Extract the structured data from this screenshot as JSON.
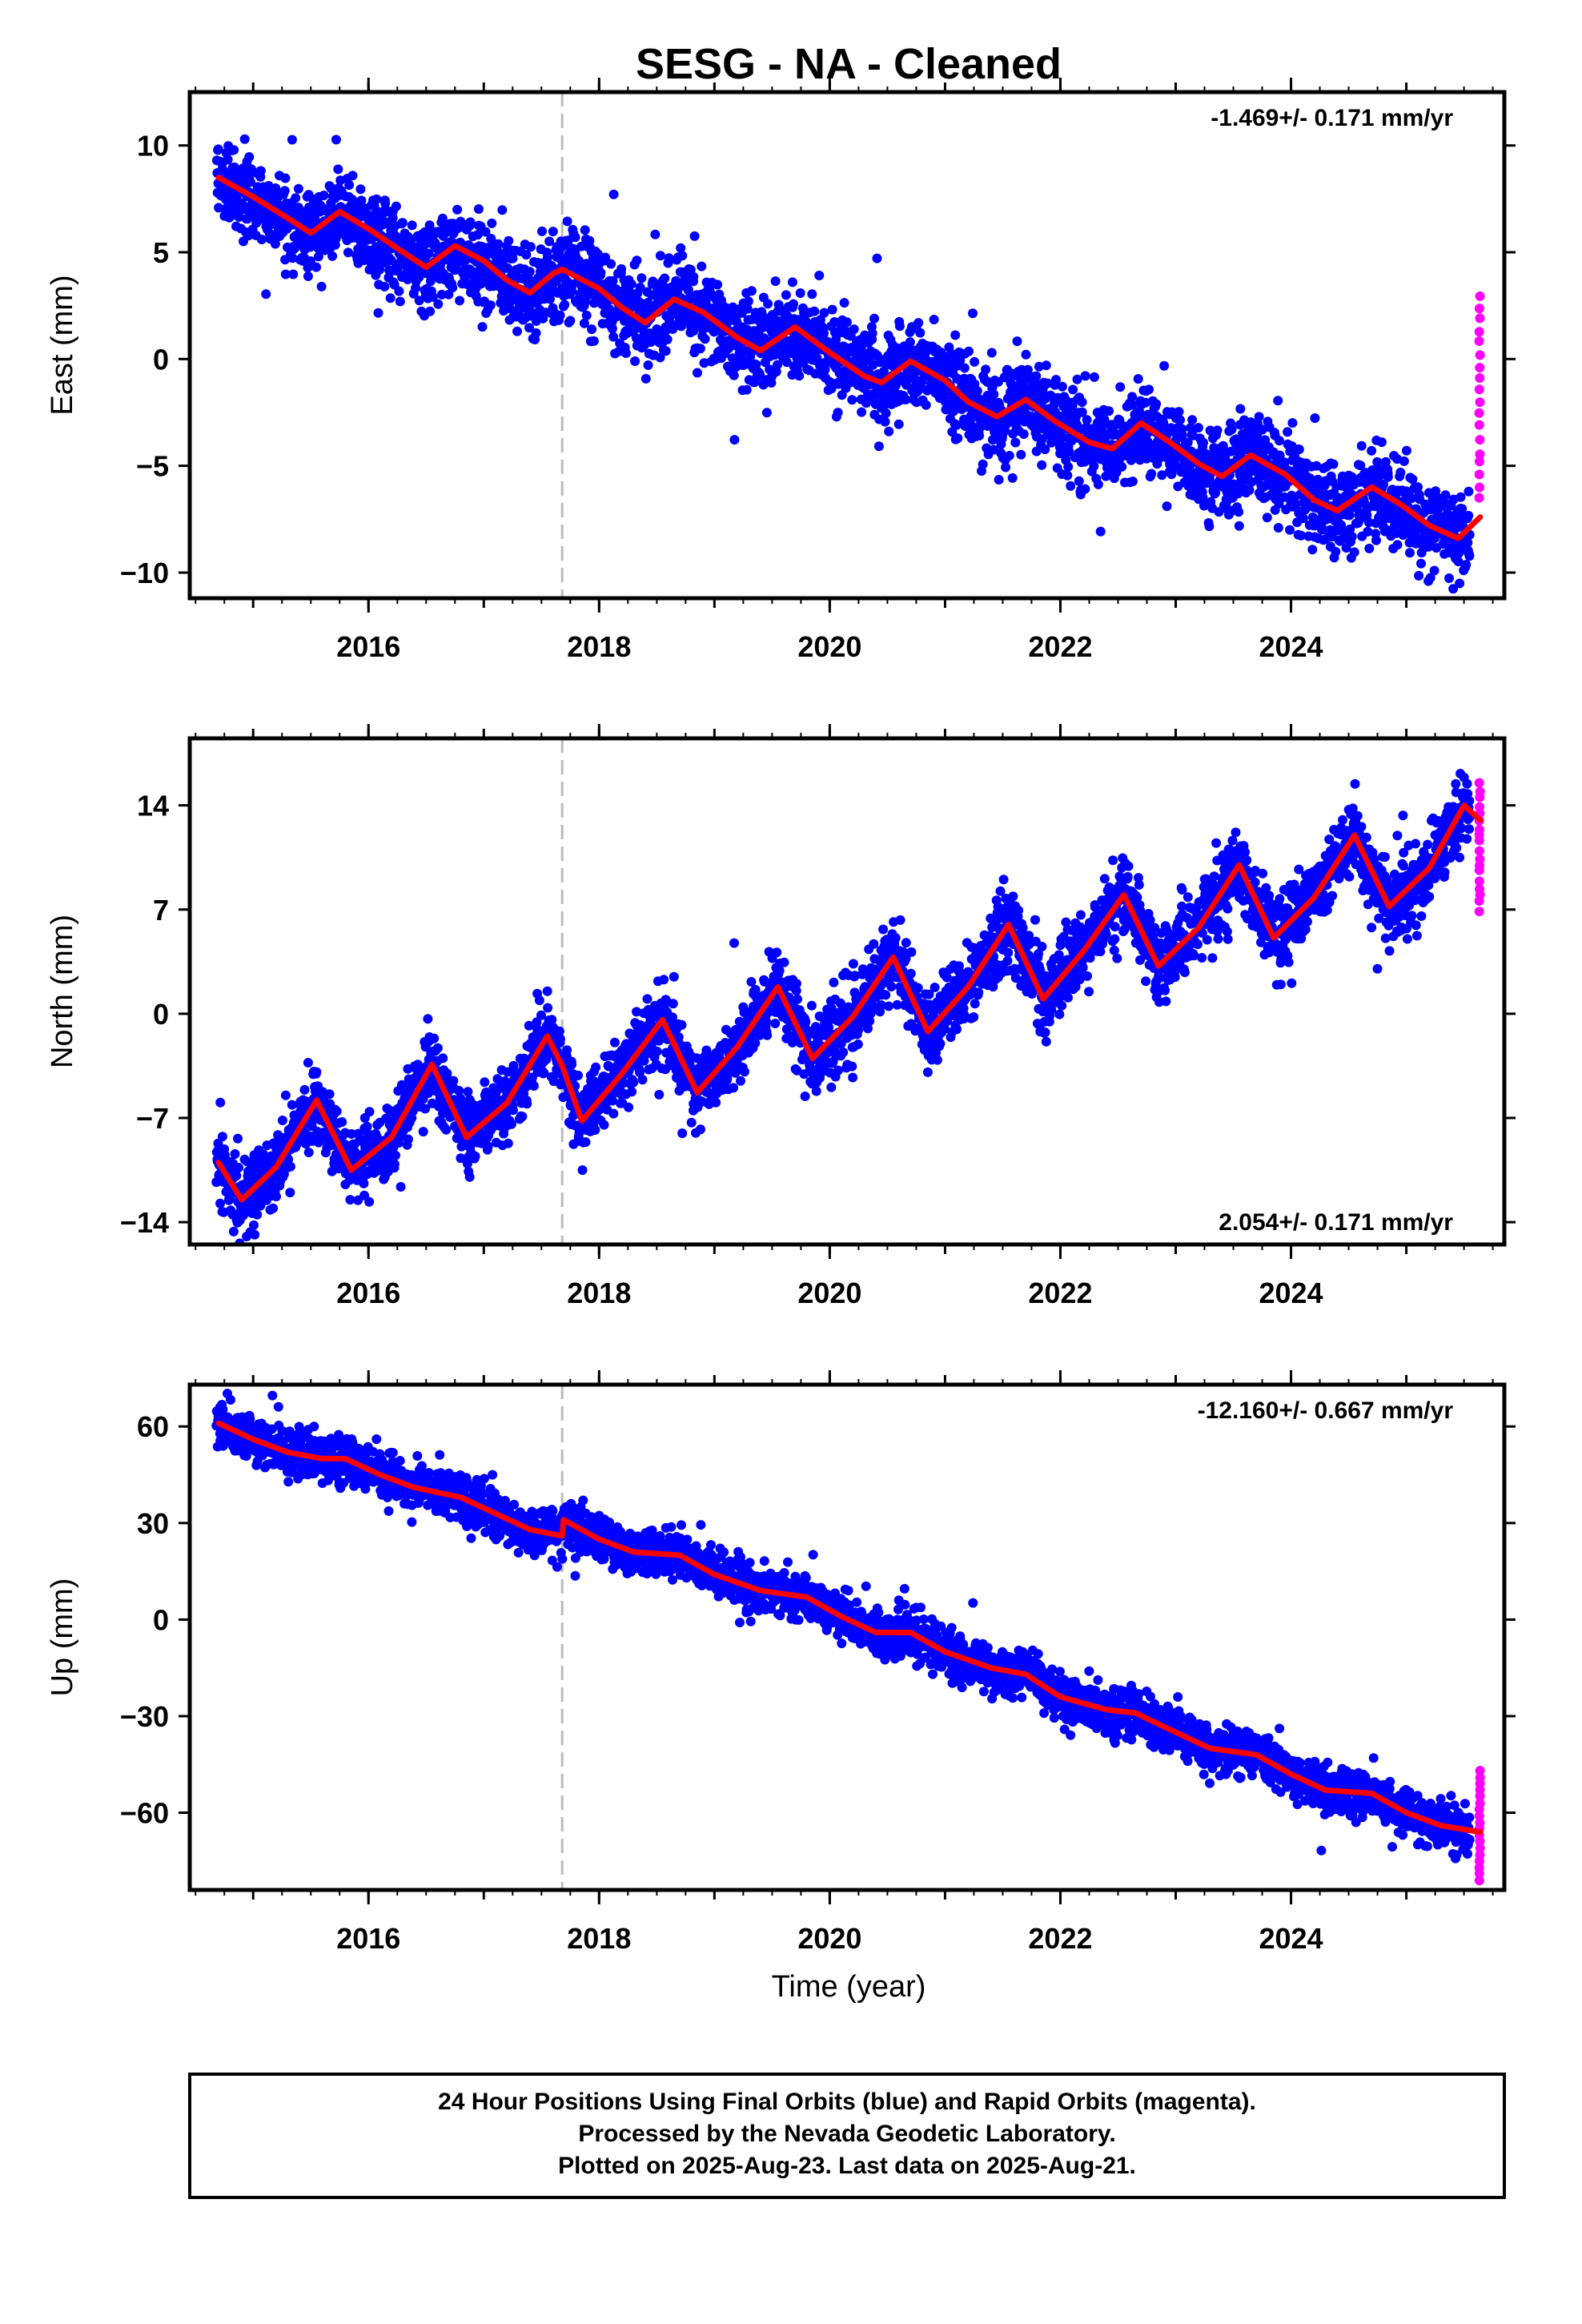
{
  "title": "SESG  - NA - Cleaned",
  "xlabel": "Time (year)",
  "footer": {
    "line1": "24 Hour Positions Using Final Orbits (blue) and Rapid Orbits (magenta).",
    "line2": "Processed by the Nevada Geodetic Laboratory.",
    "line3": "Plotted on 2025-Aug-23. Last data on 2025-Aug-21."
  },
  "colors": {
    "final_orbits": "#0000ff",
    "rapid_orbits": "#ff00ff",
    "model_fit": "#ff0000",
    "equipment_change": "#bbbbbb"
  },
  "chart_data": [
    {
      "type": "scatter",
      "component": "East",
      "ylabel": "East (mm)",
      "rate_label": "-1.469+/- 0.171 mm/yr",
      "rate_position": "top-right",
      "xlim": [
        2014.45,
        2025.85
      ],
      "ylim": [
        -11.2,
        12.5
      ],
      "xticks": [
        2016,
        2018,
        2020,
        2022,
        2024
      ],
      "yticks": [
        10,
        5,
        0,
        -5,
        -10
      ],
      "ytick_labels": [
        "10",
        "5",
        "0",
        "−5",
        "−10"
      ],
      "equipment_change": 2017.68,
      "data_start": 2014.68,
      "data_end": 2025.64,
      "rapid_start": 2025.55,
      "series": [
        {
          "name": "Final Orbits",
          "color": "#0000ff",
          "trend_at_start": 8.5,
          "rate_mm_yr": -1.469,
          "annual_amp": 1.0,
          "annual_phase": 2.2,
          "noise_sd": 1.0
        },
        {
          "name": "Rapid Orbits",
          "color": "#ff00ff",
          "y_range": [
            -6.6,
            3.0
          ]
        }
      ],
      "model_fit": {
        "color": "#ff0000",
        "points": [
          [
            2014.7,
            8.5
          ],
          [
            2015.0,
            7.6
          ],
          [
            2015.3,
            6.6
          ],
          [
            2015.5,
            5.9
          ],
          [
            2015.75,
            6.9
          ],
          [
            2016.0,
            6.1
          ],
          [
            2016.3,
            5.0
          ],
          [
            2016.5,
            4.3
          ],
          [
            2016.75,
            5.3
          ],
          [
            2017.0,
            4.6
          ],
          [
            2017.2,
            3.7
          ],
          [
            2017.4,
            3.1
          ],
          [
            2017.6,
            4.0
          ],
          [
            2017.68,
            4.2
          ],
          [
            2018.0,
            3.3
          ],
          [
            2018.2,
            2.4
          ],
          [
            2018.4,
            1.7
          ],
          [
            2018.65,
            2.8
          ],
          [
            2018.9,
            2.2
          ],
          [
            2019.2,
            1.0
          ],
          [
            2019.4,
            0.4
          ],
          [
            2019.7,
            1.5
          ],
          [
            2020.0,
            0.3
          ],
          [
            2020.3,
            -0.8
          ],
          [
            2020.45,
            -1.1
          ],
          [
            2020.7,
            -0.1
          ],
          [
            2021.0,
            -1.0
          ],
          [
            2021.2,
            -2.0
          ],
          [
            2021.45,
            -2.7
          ],
          [
            2021.7,
            -1.9
          ],
          [
            2021.95,
            -2.9
          ],
          [
            2022.25,
            -3.9
          ],
          [
            2022.45,
            -4.2
          ],
          [
            2022.7,
            -3.0
          ],
          [
            2022.95,
            -3.9
          ],
          [
            2023.2,
            -4.9
          ],
          [
            2023.4,
            -5.5
          ],
          [
            2023.65,
            -4.5
          ],
          [
            2023.95,
            -5.4
          ],
          [
            2024.2,
            -6.6
          ],
          [
            2024.4,
            -7.1
          ],
          [
            2024.7,
            -6.0
          ],
          [
            2024.95,
            -6.8
          ],
          [
            2025.2,
            -7.8
          ],
          [
            2025.45,
            -8.4
          ],
          [
            2025.64,
            -7.4
          ]
        ]
      }
    },
    {
      "type": "scatter",
      "component": "North",
      "ylabel": "North (mm)",
      "rate_label": "2.054+/- 0.171 mm/yr",
      "rate_position": "bottom-right",
      "xlim": [
        2014.45,
        2025.85
      ],
      "ylim": [
        -15.5,
        18.5
      ],
      "xticks": [
        2016,
        2018,
        2020,
        2022,
        2024
      ],
      "yticks": [
        14,
        7,
        0,
        -7,
        -14
      ],
      "ytick_labels": [
        "14",
        "7",
        "0",
        "−7",
        "−14"
      ],
      "equipment_change": 2017.68,
      "data_start": 2014.68,
      "data_end": 2025.64,
      "rapid_start": 2025.55,
      "series": [
        {
          "name": "Final Orbits",
          "color": "#0000ff",
          "trend_at_start": -11.5,
          "rate_mm_yr": 2.054,
          "annual_amp": 3.2,
          "annual_phase": 1.2,
          "noise_sd": 1.2
        },
        {
          "name": "Rapid Orbits",
          "color": "#ff00ff",
          "y_range": [
            7.0,
            15.5
          ]
        }
      ],
      "model_fit": {
        "color": "#ff0000",
        "points": [
          [
            2014.7,
            -10.0
          ],
          [
            2014.9,
            -12.5
          ],
          [
            2015.2,
            -10.3
          ],
          [
            2015.55,
            -5.8
          ],
          [
            2015.85,
            -10.5
          ],
          [
            2016.2,
            -8.3
          ],
          [
            2016.55,
            -3.4
          ],
          [
            2016.85,
            -8.3
          ],
          [
            2017.2,
            -6.0
          ],
          [
            2017.55,
            -1.5
          ],
          [
            2017.68,
            -3.5
          ],
          [
            2017.85,
            -7.2
          ],
          [
            2018.2,
            -4.0
          ],
          [
            2018.55,
            -0.4
          ],
          [
            2018.85,
            -5.3
          ],
          [
            2019.2,
            -2.2
          ],
          [
            2019.55,
            1.8
          ],
          [
            2019.85,
            -3.0
          ],
          [
            2020.2,
            -0.2
          ],
          [
            2020.55,
            3.8
          ],
          [
            2020.85,
            -1.2
          ],
          [
            2021.2,
            1.8
          ],
          [
            2021.55,
            6.0
          ],
          [
            2021.85,
            1.0
          ],
          [
            2022.2,
            4.2
          ],
          [
            2022.55,
            8.0
          ],
          [
            2022.85,
            3.2
          ],
          [
            2023.2,
            5.8
          ],
          [
            2023.55,
            10.0
          ],
          [
            2023.85,
            5.1
          ],
          [
            2024.2,
            7.8
          ],
          [
            2024.55,
            12.0
          ],
          [
            2024.85,
            7.2
          ],
          [
            2025.2,
            9.8
          ],
          [
            2025.5,
            14.0
          ],
          [
            2025.64,
            13.0
          ]
        ]
      }
    },
    {
      "type": "scatter",
      "component": "Up",
      "ylabel": "Up (mm)",
      "rate_label": "-12.160+/- 0.667 mm/yr",
      "rate_position": "top-right",
      "xlim": [
        2014.45,
        2025.85
      ],
      "ylim": [
        -84,
        73
      ],
      "xticks": [
        2016,
        2018,
        2020,
        2022,
        2024
      ],
      "yticks": [
        60,
        30,
        0,
        -30,
        -60
      ],
      "ytick_labels": [
        "60",
        "30",
        "0",
        "−30",
        "−60"
      ],
      "equipment_change": 2017.68,
      "data_start": 2014.68,
      "data_end": 2025.64,
      "rapid_start": 2025.55,
      "series": [
        {
          "name": "Final Orbits",
          "color": "#0000ff",
          "trend_at_start": 60,
          "rate_mm_yr": -12.16,
          "annual_amp": 2.5,
          "annual_phase": 0.6,
          "noise_sd": 3.5
        },
        {
          "name": "Rapid Orbits",
          "color": "#ff00ff",
          "y_range": [
            -81,
            -47
          ]
        }
      ],
      "model_fit": {
        "color": "#ff0000",
        "points": [
          [
            2014.7,
            61
          ],
          [
            2015.0,
            56
          ],
          [
            2015.3,
            52
          ],
          [
            2015.6,
            50
          ],
          [
            2015.8,
            50
          ],
          [
            2016.1,
            45
          ],
          [
            2016.4,
            41
          ],
          [
            2016.8,
            38
          ],
          [
            2017.1,
            33
          ],
          [
            2017.4,
            28
          ],
          [
            2017.68,
            26
          ],
          [
            2017.69,
            31
          ],
          [
            2018.0,
            25
          ],
          [
            2018.3,
            21
          ],
          [
            2018.7,
            20
          ],
          [
            2019.0,
            14
          ],
          [
            2019.4,
            9
          ],
          [
            2019.8,
            7
          ],
          [
            2020.1,
            1
          ],
          [
            2020.4,
            -4
          ],
          [
            2020.7,
            -4
          ],
          [
            2021.0,
            -10
          ],
          [
            2021.4,
            -15
          ],
          [
            2021.7,
            -17
          ],
          [
            2022.0,
            -24
          ],
          [
            2022.4,
            -28
          ],
          [
            2022.65,
            -29
          ],
          [
            2023.0,
            -35
          ],
          [
            2023.3,
            -40
          ],
          [
            2023.7,
            -42
          ],
          [
            2024.0,
            -48
          ],
          [
            2024.3,
            -53
          ],
          [
            2024.7,
            -54
          ],
          [
            2025.0,
            -60
          ],
          [
            2025.3,
            -64
          ],
          [
            2025.64,
            -66
          ]
        ]
      }
    }
  ]
}
